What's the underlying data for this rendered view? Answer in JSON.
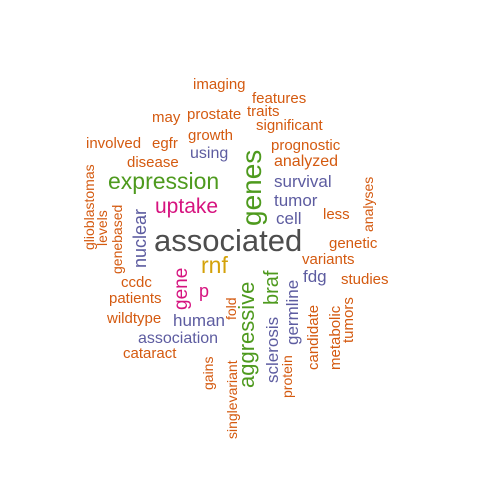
{
  "colors": {
    "orange": "#d45a10",
    "green": "#4e9a1e",
    "purple": "#5d5ca0",
    "magenta": "#d6137f",
    "gold": "#d4a20a",
    "gray": "#4d4d4d"
  },
  "words": [
    {
      "id": "imaging",
      "text": "imaging"
    },
    {
      "id": "features",
      "text": "features"
    },
    {
      "id": "traits",
      "text": "traits"
    },
    {
      "id": "may",
      "text": "may"
    },
    {
      "id": "prostate",
      "text": "prostate"
    },
    {
      "id": "significant",
      "text": "significant"
    },
    {
      "id": "involved",
      "text": "involved"
    },
    {
      "id": "egfr",
      "text": "egfr"
    },
    {
      "id": "growth",
      "text": "growth"
    },
    {
      "id": "prognostic",
      "text": "prognostic"
    },
    {
      "id": "using",
      "text": "using"
    },
    {
      "id": "disease",
      "text": "disease"
    },
    {
      "id": "analyzed",
      "text": "analyzed"
    },
    {
      "id": "expression",
      "text": "expression"
    },
    {
      "id": "survival",
      "text": "survival"
    },
    {
      "id": "uptake",
      "text": "uptake"
    },
    {
      "id": "tumor",
      "text": "tumor"
    },
    {
      "id": "less",
      "text": "less"
    },
    {
      "id": "cell",
      "text": "cell"
    },
    {
      "id": "associated",
      "text": "associated"
    },
    {
      "id": "genetic",
      "text": "genetic"
    },
    {
      "id": "variants",
      "text": "variants"
    },
    {
      "id": "rnf",
      "text": "rnf"
    },
    {
      "id": "fdg",
      "text": "fdg"
    },
    {
      "id": "studies",
      "text": "studies"
    },
    {
      "id": "ccdc",
      "text": "ccdc"
    },
    {
      "id": "p",
      "text": "p"
    },
    {
      "id": "patients",
      "text": "patients"
    },
    {
      "id": "wildtype",
      "text": "wildtype"
    },
    {
      "id": "human",
      "text": "human"
    },
    {
      "id": "association",
      "text": "association"
    },
    {
      "id": "cataract",
      "text": "cataract"
    },
    {
      "id": "glioblastomas",
      "text": "glioblastomas"
    },
    {
      "id": "levels",
      "text": "levels"
    },
    {
      "id": "genebased",
      "text": "genebased"
    },
    {
      "id": "nuclear",
      "text": "nuclear"
    },
    {
      "id": "gene",
      "text": "gene"
    },
    {
      "id": "genes",
      "text": "genes"
    },
    {
      "id": "aggressive",
      "text": "aggressive"
    },
    {
      "id": "braf",
      "text": "braf"
    },
    {
      "id": "sclerosis",
      "text": "sclerosis"
    },
    {
      "id": "germline",
      "text": "germline"
    },
    {
      "id": "protein",
      "text": "protein"
    },
    {
      "id": "candidate",
      "text": "candidate"
    },
    {
      "id": "metabolic",
      "text": "metabolic"
    },
    {
      "id": "tumors",
      "text": "tumors"
    },
    {
      "id": "analyses",
      "text": "analyses"
    },
    {
      "id": "fold",
      "text": "fold"
    },
    {
      "id": "gains",
      "text": "gains"
    },
    {
      "id": "singlevariant",
      "text": "singlevariant"
    }
  ]
}
